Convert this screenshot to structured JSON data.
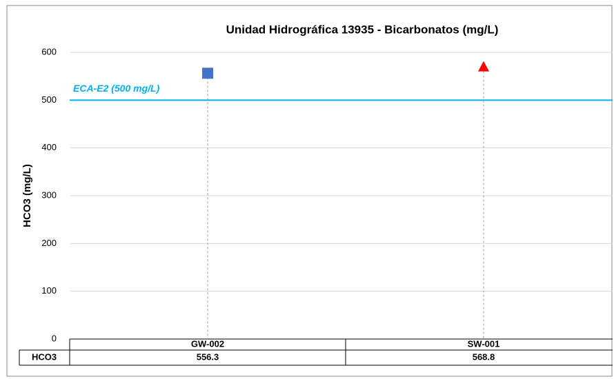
{
  "chart_data": {
    "type": "dot",
    "title": "Unidad Hidrográfica 13935 - Bicarbonatos (mg/L)",
    "y_label": "HCO3 (mg/L)",
    "categories": [
      "GW-002",
      "SW-001"
    ],
    "series": [
      {
        "name": "HCO3",
        "values": [
          556.3,
          568.8
        ],
        "point_colors": [
          "#4472c4",
          "#ff0000"
        ],
        "point_markers": [
          "square",
          "triangle"
        ]
      }
    ],
    "reference_line": {
      "label": "ECA-E2 (500 mg/L)",
      "value": 500,
      "color": "#00b0f0"
    },
    "ylim": [
      0,
      600
    ],
    "yticks": [
      0,
      100,
      200,
      300,
      400,
      500,
      600
    ],
    "grid": true,
    "data_table": true
  }
}
